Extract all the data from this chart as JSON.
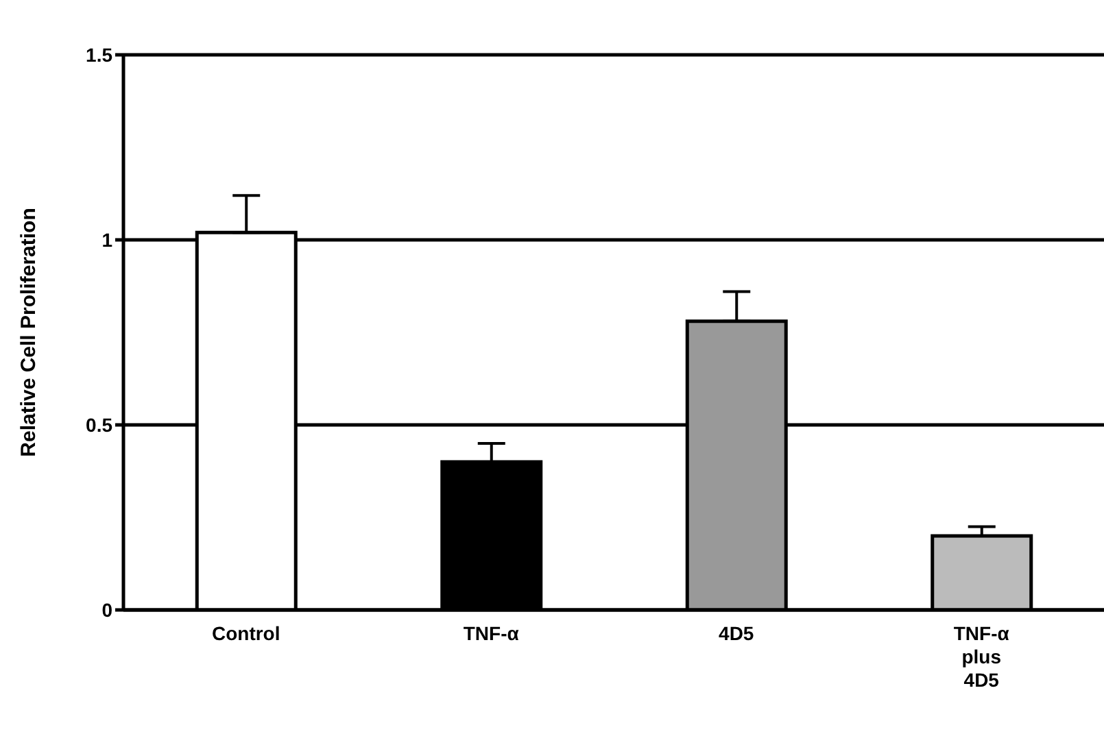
{
  "chart_data": {
    "type": "bar",
    "ylabel": "Relative Cell Proliferation",
    "categories": [
      "Control",
      "TNF-α",
      "4D5",
      "TNF-α plus 4D5"
    ],
    "values": [
      1.02,
      0.4,
      0.78,
      0.2
    ],
    "errors": [
      [
        1.02,
        1.12
      ],
      [
        0.4,
        0.45
      ],
      [
        0.78,
        0.86
      ],
      [
        0.2,
        0.225
      ]
    ],
    "colors": [
      "#ffffff",
      "#000000",
      "#999999",
      "#bbbbbb"
    ],
    "ylim": [
      0,
      1.5
    ],
    "yticks": [
      0,
      0.5,
      1,
      1.5
    ],
    "grid": "y"
  }
}
